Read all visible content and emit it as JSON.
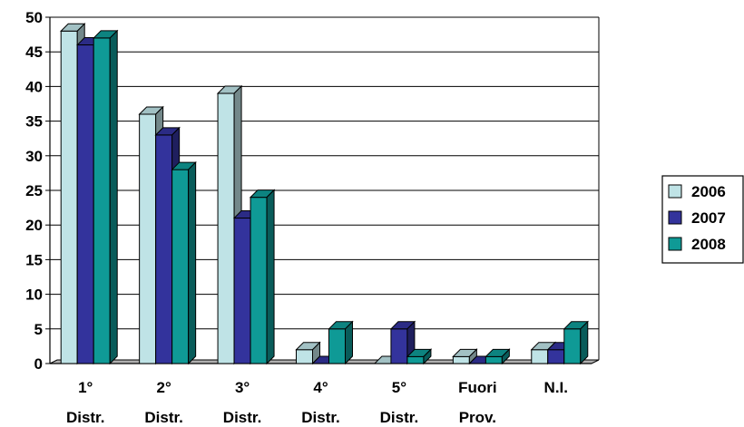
{
  "chart_data": {
    "type": "bar",
    "title": "",
    "xlabel": "",
    "ylabel": "",
    "ylim": [
      0,
      50
    ],
    "yticks": [
      0,
      5,
      10,
      15,
      20,
      25,
      30,
      35,
      40,
      45,
      50
    ],
    "grid": true,
    "legend_position": "right",
    "categories": [
      [
        "1°",
        "Distr."
      ],
      [
        "2°",
        "Distr."
      ],
      [
        "3°",
        "Distr."
      ],
      [
        "4°",
        "Distr."
      ],
      [
        "5°",
        "Distr."
      ],
      [
        "Fuori",
        "Prov."
      ],
      [
        "N.I.",
        ""
      ]
    ],
    "series": [
      {
        "name": "2006",
        "color": "#bfe3e6",
        "values": [
          48,
          36,
          39,
          2,
          0,
          1,
          2
        ]
      },
      {
        "name": "2007",
        "color": "#33339c",
        "values": [
          46,
          33,
          21,
          0,
          5,
          0,
          2
        ]
      },
      {
        "name": "2008",
        "color": "#0f9a96",
        "values": [
          47,
          28,
          24,
          5,
          1,
          1,
          5
        ]
      }
    ]
  }
}
